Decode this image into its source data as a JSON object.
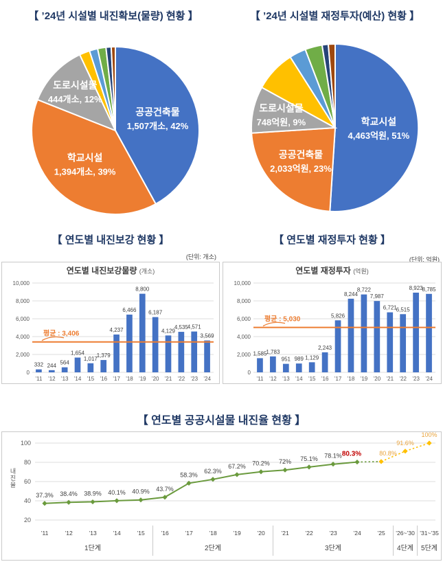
{
  "sections": {
    "pie_left_title": "【 ’24년 시설별 내진확보(물량) 현황 】",
    "pie_right_title": "【 ’24년 시설별 재정투자(예산) 현황 】",
    "bar_left_title": "【 연도별 내진보강 현황 】",
    "bar_right_title": "【 연도별 재정투자 현황 】",
    "bar_left_unit": "(단위: 개소)",
    "bar_right_unit": "(단위: 억원)",
    "line_title": "【 연도별 공공시설물 내진율 현황 】"
  },
  "colors": {
    "blue": "#4472C4",
    "orange": "#ED7D31",
    "gray": "#A5A5A5",
    "yellow": "#FFC000",
    "lightblue": "#5B9BD5",
    "green": "#70AD47",
    "navy": "#264478",
    "darkred": "#9E480E",
    "heading_navy": "#1F3864",
    "line_green": "#6A9A3D",
    "highlight_red": "#C00000",
    "projection_orange": "#E8A33D"
  },
  "chart_data": [
    {
      "id": "pie_volume",
      "type": "pie",
      "title": "’24년 시설별 내진확보(물량) 현황",
      "slices": [
        {
          "label": "공공건축물",
          "value_label": "1,507개소, 42%",
          "percent": 42,
          "color": "#4472C4",
          "label_r": 0.52
        },
        {
          "label": "학교시설",
          "value_label": "1,394개소, 39%",
          "percent": 39,
          "color": "#ED7D31",
          "label_r": 0.55
        },
        {
          "label": "도로시설물",
          "value_label": "444개소, 12%",
          "percent": 12,
          "color": "#A5A5A5",
          "label_r": 0.66
        },
        {
          "label": "",
          "value_label": "",
          "percent": 2.0,
          "color": "#FFC000"
        },
        {
          "label": "",
          "value_label": "",
          "percent": 1.6,
          "color": "#5B9BD5"
        },
        {
          "label": "",
          "value_label": "",
          "percent": 1.6,
          "color": "#70AD47"
        },
        {
          "label": "",
          "value_label": "",
          "percent": 1.0,
          "color": "#264478"
        },
        {
          "label": "",
          "value_label": "",
          "percent": 0.8,
          "color": "#9E480E"
        }
      ]
    },
    {
      "id": "pie_budget",
      "type": "pie",
      "title": "’24년 시설별 재정투자(예산) 현황",
      "slices": [
        {
          "label": "학교시설",
          "value_label": "4,463억원, 51%",
          "percent": 51,
          "color": "#4472C4",
          "label_r": 0.52
        },
        {
          "label": "공공건축물",
          "value_label": "2,033억원, 23%",
          "percent": 23,
          "color": "#ED7D31",
          "label_r": 0.58
        },
        {
          "label": "도로시설물",
          "value_label": "748억원, 9%",
          "percent": 9,
          "color": "#A5A5A5",
          "label_r": 0.66
        },
        {
          "label": "",
          "value_label": "",
          "percent": 8.0,
          "color": "#FFC000"
        },
        {
          "label": "",
          "value_label": "",
          "percent": 3.2,
          "color": "#5B9BD5"
        },
        {
          "label": "",
          "value_label": "",
          "percent": 3.3,
          "color": "#70AD47"
        },
        {
          "label": "",
          "value_label": "",
          "percent": 1.2,
          "color": "#264478"
        },
        {
          "label": "",
          "value_label": "",
          "percent": 1.3,
          "color": "#9E480E"
        }
      ]
    },
    {
      "id": "bar_volume",
      "type": "bar",
      "title": "연도별 내진보강물량",
      "title_unit": "(개소)",
      "categories": [
        "’11",
        "’12",
        "’13",
        "’14",
        "’15",
        "’16",
        "’17",
        "’18",
        "’19",
        "’20",
        "’21",
        "’22",
        "’23",
        "’24"
      ],
      "values": [
        332,
        244,
        564,
        1654,
        1017,
        1379,
        4237,
        6466,
        8800,
        6187,
        4129,
        4535,
        4571,
        3569
      ],
      "labels": [
        "332",
        "244",
        "564",
        "1,654",
        "1,017",
        "1,379",
        "4,237",
        "6,466",
        "8,800",
        "6,187",
        "4,129",
        "4,535",
        "4,571",
        "3,569"
      ],
      "average": 3406,
      "average_label": "평균 : 3,406",
      "ylim": [
        0,
        10000
      ],
      "yticks": [
        0,
        2000,
        4000,
        6000,
        8000,
        10000
      ],
      "ytick_labels": [
        "0",
        "2,000",
        "4,000",
        "6,000",
        "8,000",
        "10,000"
      ],
      "bar_color": "#4472C4",
      "avg_color": "#ED7D31"
    },
    {
      "id": "bar_budget",
      "type": "bar",
      "title": "연도별 재정투자",
      "title_unit": "(억원)",
      "categories": [
        "’11",
        "’12",
        "’13",
        "’14",
        "’15",
        "’16",
        "’17",
        "’18",
        "’19",
        "’20",
        "’21",
        "’22",
        "’23",
        "’24"
      ],
      "values": [
        1585,
        1783,
        951,
        989,
        1129,
        2243,
        5826,
        8244,
        8722,
        7987,
        6721,
        6515,
        8923,
        8785
      ],
      "labels": [
        "1,585",
        "1,783",
        "951",
        "989",
        "1,129",
        "2,243",
        "5,826",
        "8,244",
        "8,722",
        "7,987",
        "6,721",
        "6,515",
        "8,923",
        "8,785"
      ],
      "average": 5030,
      "average_label": "평균 : 5,030",
      "ylim": [
        0,
        10000
      ],
      "yticks": [
        0,
        2000,
        4000,
        6000,
        8000,
        10000
      ],
      "ytick_labels": [
        "0",
        "2,000",
        "4,000",
        "6,000",
        "8,000",
        "10,000"
      ],
      "bar_color": "#4472C4",
      "avg_color": "#ED7D31"
    },
    {
      "id": "line_rate",
      "type": "line",
      "title": "연도별 공공시설물 내진율 현황",
      "ylabel": "내진율",
      "categories": [
        "’11",
        "’12",
        "’13",
        "’14",
        "’15",
        "’16",
        "’17",
        "’18",
        "’19",
        "’20",
        "’21",
        "’22",
        "’23",
        "’24",
        "’25",
        "’26~’30",
        "’31~’35"
      ],
      "values": [
        37.3,
        38.4,
        38.9,
        40.1,
        40.9,
        43.7,
        58.3,
        62.3,
        67.2,
        70.2,
        72,
        75.1,
        78.1,
        80.3,
        80.8,
        91.6,
        100
      ],
      "labels": [
        "37.3%",
        "38.4%",
        "38.9%",
        "40.1%",
        "40.9%",
        "43.7%",
        "58.3%",
        "62.3%",
        "67.2%",
        "70.2%",
        "72%",
        "75.1%",
        "78.1%",
        "80.3%",
        "80.8%",
        "91.6%",
        "100%"
      ],
      "yticks": [
        20,
        40,
        60,
        80,
        100
      ],
      "ylim": [
        20,
        100
      ],
      "solid_to": 13,
      "highlight_index": 13,
      "projection_from": 14,
      "line_color": "#6A9A3D",
      "highlight_color": "#C00000",
      "projection_color": "#E8A33D",
      "marker_projection_color": "#FFC000",
      "label_color": "#404040",
      "label_dx": {
        "13": -8,
        "14": 10
      },
      "stages": [
        {
          "label": "1단계",
          "from": 0,
          "to": 4
        },
        {
          "label": "2단계",
          "from": 5,
          "to": 9
        },
        {
          "label": "3단계",
          "from": 10,
          "to": 14
        },
        {
          "label": "4단계",
          "from": 15,
          "to": 15
        },
        {
          "label": "5단계",
          "from": 16,
          "to": 16
        }
      ]
    }
  ]
}
